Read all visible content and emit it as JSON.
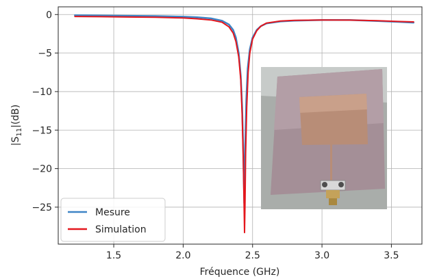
{
  "chart_data": {
    "type": "line",
    "xlabel": "Fréquence (GHz)",
    "ylabel_base": "|S",
    "ylabel_sub": "11",
    "ylabel_tail": "|(dB)",
    "xlim": [
      1.1,
      3.72
    ],
    "ylim": [
      -29.8,
      1.0
    ],
    "x_ticks": [
      1.5,
      2.0,
      2.5,
      3.0,
      3.5
    ],
    "x_tick_labels": [
      "1.5",
      "2.0",
      "2.5",
      "3.0",
      "3.5"
    ],
    "y_ticks": [
      0,
      -5,
      -10,
      -15,
      -20,
      -25
    ],
    "y_tick_labels": [
      "0",
      "−5",
      "−10",
      "−15",
      "−20",
      "−25"
    ],
    "grid": true,
    "legend_position": "lower-left",
    "series": [
      {
        "name": "Mesure",
        "color": "#3d84c6",
        "points": [
          [
            1.22,
            -0.1
          ],
          [
            1.4,
            -0.13
          ],
          [
            1.6,
            -0.16
          ],
          [
            1.8,
            -0.2
          ],
          [
            2.0,
            -0.28
          ],
          [
            2.1,
            -0.36
          ],
          [
            2.2,
            -0.5
          ],
          [
            2.28,
            -0.8
          ],
          [
            2.33,
            -1.3
          ],
          [
            2.36,
            -2.0
          ],
          [
            2.38,
            -3.0
          ],
          [
            2.4,
            -5.0
          ],
          [
            2.415,
            -8.0
          ],
          [
            2.425,
            -12.0
          ],
          [
            2.432,
            -17.0
          ],
          [
            2.437,
            -22.0
          ],
          [
            2.44,
            -24.5
          ],
          [
            2.443,
            -22.0
          ],
          [
            2.447,
            -17.0
          ],
          [
            2.455,
            -11.0
          ],
          [
            2.465,
            -7.0
          ],
          [
            2.48,
            -4.5
          ],
          [
            2.5,
            -3.0
          ],
          [
            2.53,
            -2.0
          ],
          [
            2.56,
            -1.5
          ],
          [
            2.6,
            -1.15
          ],
          [
            2.7,
            -0.9
          ],
          [
            2.8,
            -0.8
          ],
          [
            3.0,
            -0.7
          ],
          [
            3.2,
            -0.7
          ],
          [
            3.4,
            -0.85
          ],
          [
            3.55,
            -0.95
          ],
          [
            3.66,
            -1.05
          ]
        ]
      },
      {
        "name": "Simulation",
        "color": "#e4161c",
        "points": [
          [
            1.22,
            -0.25
          ],
          [
            1.4,
            -0.28
          ],
          [
            1.6,
            -0.32
          ],
          [
            1.8,
            -0.36
          ],
          [
            2.0,
            -0.45
          ],
          [
            2.1,
            -0.55
          ],
          [
            2.2,
            -0.7
          ],
          [
            2.28,
            -1.0
          ],
          [
            2.33,
            -1.6
          ],
          [
            2.36,
            -2.4
          ],
          [
            2.38,
            -3.5
          ],
          [
            2.4,
            -5.5
          ],
          [
            2.415,
            -8.5
          ],
          [
            2.425,
            -13.0
          ],
          [
            2.433,
            -19.0
          ],
          [
            2.438,
            -24.0
          ],
          [
            2.442,
            -28.3
          ],
          [
            2.446,
            -24.0
          ],
          [
            2.45,
            -18.0
          ],
          [
            2.458,
            -12.0
          ],
          [
            2.468,
            -7.5
          ],
          [
            2.48,
            -5.0
          ],
          [
            2.5,
            -3.2
          ],
          [
            2.53,
            -2.1
          ],
          [
            2.56,
            -1.5
          ],
          [
            2.6,
            -1.1
          ],
          [
            2.7,
            -0.85
          ],
          [
            2.8,
            -0.75
          ],
          [
            3.0,
            -0.7
          ],
          [
            3.2,
            -0.72
          ],
          [
            3.4,
            -0.8
          ],
          [
            3.55,
            -0.9
          ],
          [
            3.66,
            -0.95
          ]
        ]
      }
    ],
    "inset_photo_icon": "antenna-photo"
  }
}
